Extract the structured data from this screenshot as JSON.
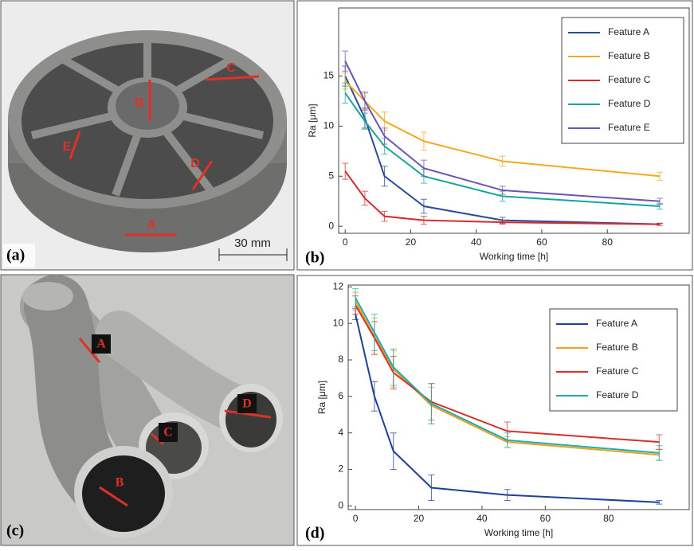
{
  "photo_a": {
    "panel_label": "(a)",
    "feature_labels": [
      "A",
      "B",
      "C",
      "D",
      "E"
    ],
    "scale_bar": "30 mm"
  },
  "photo_c": {
    "panel_label": "(c)",
    "feature_labels": [
      "A",
      "B",
      "C",
      "D"
    ]
  },
  "chart_data": [
    {
      "type": "line",
      "panel_label": "(b)",
      "x_label": "Working time [h]",
      "y_label": "Ra [μm]",
      "x": [
        0,
        6,
        12,
        24,
        48,
        96
      ],
      "xlim": [
        -2,
        105
      ],
      "xticks": [
        0,
        20,
        40,
        60,
        80
      ],
      "ylim": [
        -0.7,
        21.8
      ],
      "yticks": [
        0,
        5,
        10,
        15
      ],
      "legend": "upper right",
      "series": [
        {
          "name": "Feature A",
          "color": "#2c4a9a",
          "values": [
            15.0,
            10.8,
            5.0,
            2.0,
            0.6,
            0.2
          ],
          "errors": [
            1.0,
            1.0,
            1.0,
            0.7,
            0.3,
            0.1
          ]
        },
        {
          "name": "Feature B",
          "color": "#f2a91e",
          "values": [
            14.5,
            12.5,
            10.5,
            8.5,
            6.5,
            5.0
          ],
          "errors": [
            0.8,
            0.8,
            0.9,
            0.9,
            0.5,
            0.4
          ]
        },
        {
          "name": "Feature C",
          "color": "#d62c2c",
          "values": [
            5.5,
            2.8,
            1.0,
            0.6,
            0.4,
            0.2
          ],
          "errors": [
            0.8,
            0.7,
            0.5,
            0.4,
            0.2,
            0.1
          ]
        },
        {
          "name": "Feature D",
          "color": "#1aa59a",
          "values": [
            13.3,
            10.5,
            8.0,
            5.0,
            3.0,
            2.0
          ],
          "errors": [
            1.0,
            0.8,
            0.8,
            0.7,
            0.5,
            0.3
          ]
        },
        {
          "name": "Feature E",
          "color": "#6a55b5",
          "values": [
            16.5,
            12.5,
            9.0,
            5.8,
            3.6,
            2.5
          ],
          "errors": [
            1.0,
            0.9,
            0.8,
            0.8,
            0.4,
            0.3
          ]
        }
      ]
    },
    {
      "type": "line",
      "panel_label": "(d)",
      "x_label": "Working time [h]",
      "y_label": "Ra [μm]",
      "x": [
        0,
        6,
        12,
        24,
        48,
        96
      ],
      "xlim": [
        -2.3,
        105.5
      ],
      "xticks": [
        0,
        20,
        40,
        60,
        80
      ],
      "ylim": [
        -0.2,
        12.1
      ],
      "yticks": [
        0,
        2,
        4,
        6,
        8,
        10,
        12
      ],
      "legend": "upper right",
      "series": [
        {
          "name": "Feature A",
          "color": "#1f3f9b",
          "values": [
            10.5,
            6.0,
            3.0,
            1.0,
            0.6,
            0.2
          ],
          "errors": [
            0.3,
            0.8,
            1.0,
            0.7,
            0.3,
            0.1
          ]
        },
        {
          "name": "Feature B",
          "color": "#f0a020",
          "values": [
            11.2,
            9.3,
            7.5,
            5.5,
            3.5,
            2.8
          ],
          "errors": [
            0.5,
            1.0,
            1.0,
            1.0,
            0.3,
            0.3
          ]
        },
        {
          "name": "Feature C",
          "color": "#d9302a",
          "values": [
            11.0,
            9.2,
            7.3,
            5.7,
            4.1,
            3.5
          ],
          "errors": [
            0.5,
            0.9,
            0.9,
            1.0,
            0.5,
            0.4
          ]
        },
        {
          "name": "Feature D",
          "color": "#1ab0b0",
          "values": [
            11.4,
            9.5,
            7.6,
            5.6,
            3.6,
            2.9
          ],
          "errors": [
            0.5,
            1.0,
            1.0,
            1.1,
            0.4,
            0.4
          ]
        }
      ]
    }
  ]
}
